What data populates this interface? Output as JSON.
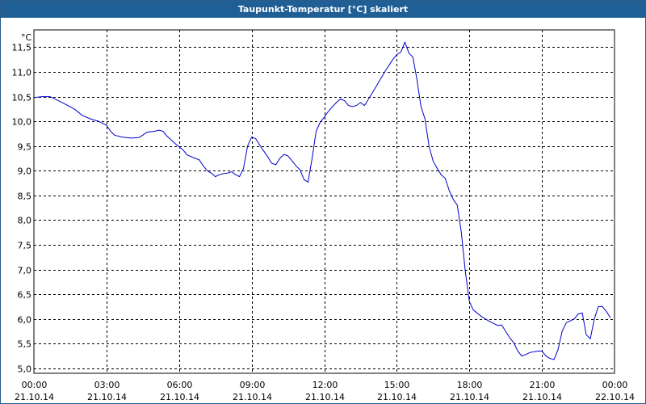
{
  "window": {
    "title": "Taupunkt-Temperatur [°C] skaliert"
  },
  "colors": {
    "title_bar": "#1f5f95",
    "line": "#0000cc",
    "grid": "#000000"
  },
  "chart_data": {
    "type": "line",
    "title": "Taupunkt-Temperatur [°C] skaliert",
    "ylabel": "°C",
    "ylim": [
      4.9,
      11.85
    ],
    "xlim": [
      "2014-10-21 00:00",
      "2014-10-22 00:00"
    ],
    "grid": true,
    "y_ticks": [
      "5,0",
      "5,5",
      "6,0",
      "6,5",
      "7,0",
      "7,5",
      "8,0",
      "8,5",
      "9,0",
      "9,5",
      "10,0",
      "10,5",
      "11,0",
      "11,5"
    ],
    "x_ticks": [
      {
        "time": "00:00",
        "date": "21.10.14"
      },
      {
        "time": "03:00",
        "date": "21.10.14"
      },
      {
        "time": "06:00",
        "date": "21.10.14"
      },
      {
        "time": "09:00",
        "date": "21.10.14"
      },
      {
        "time": "12:00",
        "date": "21.10.14"
      },
      {
        "time": "15:00",
        "date": "21.10.14"
      },
      {
        "time": "18:00",
        "date": "21.10.14"
      },
      {
        "time": "21:00",
        "date": "21.10.14"
      },
      {
        "time": "00:00",
        "date": "22.10.14"
      }
    ],
    "series": [
      {
        "points": [
          [
            "2014-10-21 00:00",
            10.48
          ],
          [
            "2014-10-21 00:20",
            10.5
          ],
          [
            "2014-10-21 00:40",
            10.5
          ],
          [
            "2014-10-21 01:10",
            10.38
          ],
          [
            "2014-10-21 01:40",
            10.25
          ],
          [
            "2014-10-21 02:00",
            10.12
          ],
          [
            "2014-10-21 02:20",
            10.05
          ],
          [
            "2014-10-21 02:40",
            10.0
          ],
          [
            "2014-10-21 03:00",
            9.92
          ],
          [
            "2014-10-21 03:10",
            9.8
          ],
          [
            "2014-10-21 03:20",
            9.72
          ],
          [
            "2014-10-21 03:40",
            9.68
          ],
          [
            "2014-10-21 04:00",
            9.66
          ],
          [
            "2014-10-21 04:20",
            9.67
          ],
          [
            "2014-10-21 04:30",
            9.72
          ],
          [
            "2014-10-21 04:40",
            9.78
          ],
          [
            "2014-10-21 05:00",
            9.8
          ],
          [
            "2014-10-21 05:10",
            9.82
          ],
          [
            "2014-10-21 05:20",
            9.8
          ],
          [
            "2014-10-21 05:30",
            9.7
          ],
          [
            "2014-10-21 05:50",
            9.55
          ],
          [
            "2014-10-21 06:10",
            9.42
          ],
          [
            "2014-10-21 06:20",
            9.32
          ],
          [
            "2014-10-21 06:40",
            9.25
          ],
          [
            "2014-10-21 06:50",
            9.22
          ],
          [
            "2014-10-21 07:00",
            9.1
          ],
          [
            "2014-10-21 07:10",
            9.0
          ],
          [
            "2014-10-21 07:20",
            8.95
          ],
          [
            "2014-10-21 07:30",
            8.88
          ],
          [
            "2014-10-21 07:40",
            8.92
          ],
          [
            "2014-10-21 07:50",
            8.94
          ],
          [
            "2014-10-21 08:00",
            8.95
          ],
          [
            "2014-10-21 08:10",
            8.98
          ],
          [
            "2014-10-21 08:20",
            8.92
          ],
          [
            "2014-10-21 08:30",
            8.88
          ],
          [
            "2014-10-21 08:40",
            9.05
          ],
          [
            "2014-10-21 08:50",
            9.5
          ],
          [
            "2014-10-21 09:00",
            9.68
          ],
          [
            "2014-10-21 09:10",
            9.65
          ],
          [
            "2014-10-21 09:20",
            9.52
          ],
          [
            "2014-10-21 09:40",
            9.28
          ],
          [
            "2014-10-21 09:50",
            9.15
          ],
          [
            "2014-10-21 10:00",
            9.12
          ],
          [
            "2014-10-21 10:10",
            9.25
          ],
          [
            "2014-10-21 10:20",
            9.33
          ],
          [
            "2014-10-21 10:30",
            9.3
          ],
          [
            "2014-10-21 10:40",
            9.2
          ],
          [
            "2014-10-21 10:50",
            9.1
          ],
          [
            "2014-10-21 11:00",
            9.02
          ],
          [
            "2014-10-21 11:10",
            8.82
          ],
          [
            "2014-10-21 11:20",
            8.77
          ],
          [
            "2014-10-21 11:30",
            9.25
          ],
          [
            "2014-10-21 11:40",
            9.8
          ],
          [
            "2014-10-21 11:50",
            9.98
          ],
          [
            "2014-10-21 12:00",
            10.08
          ],
          [
            "2014-10-21 12:10",
            10.2
          ],
          [
            "2014-10-21 12:30",
            10.38
          ],
          [
            "2014-10-21 12:40",
            10.45
          ],
          [
            "2014-10-21 12:50",
            10.42
          ],
          [
            "2014-10-21 13:00",
            10.32
          ],
          [
            "2014-10-21 13:10",
            10.3
          ],
          [
            "2014-10-21 13:20",
            10.32
          ],
          [
            "2014-10-21 13:30",
            10.38
          ],
          [
            "2014-10-21 13:40",
            10.32
          ],
          [
            "2014-10-21 13:50",
            10.45
          ],
          [
            "2014-10-21 14:10",
            10.72
          ],
          [
            "2014-10-21 14:30",
            11.0
          ],
          [
            "2014-10-21 14:50",
            11.25
          ],
          [
            "2014-10-21 15:00",
            11.35
          ],
          [
            "2014-10-21 15:10",
            11.4
          ],
          [
            "2014-10-21 15:20",
            11.6
          ],
          [
            "2014-10-21 15:30",
            11.38
          ],
          [
            "2014-10-21 15:40",
            11.3
          ],
          [
            "2014-10-21 15:50",
            10.85
          ],
          [
            "2014-10-21 16:00",
            10.3
          ],
          [
            "2014-10-21 16:10",
            10.05
          ],
          [
            "2014-10-21 16:20",
            9.5
          ],
          [
            "2014-10-21 16:30",
            9.2
          ],
          [
            "2014-10-21 16:40",
            9.05
          ],
          [
            "2014-10-21 16:50",
            8.92
          ],
          [
            "2014-10-21 17:00",
            8.85
          ],
          [
            "2014-10-21 17:10",
            8.6
          ],
          [
            "2014-10-21 17:20",
            8.42
          ],
          [
            "2014-10-21 17:30",
            8.3
          ],
          [
            "2014-10-21 17:40",
            7.75
          ],
          [
            "2014-10-21 17:50",
            6.95
          ],
          [
            "2014-10-21 18:00",
            6.35
          ],
          [
            "2014-10-21 18:10",
            6.18
          ],
          [
            "2014-10-21 18:30",
            6.05
          ],
          [
            "2014-10-21 18:50",
            5.95
          ],
          [
            "2014-10-21 19:10",
            5.87
          ],
          [
            "2014-10-21 19:20",
            5.88
          ],
          [
            "2014-10-21 19:40",
            5.62
          ],
          [
            "2014-10-21 19:50",
            5.52
          ],
          [
            "2014-10-21 20:00",
            5.35
          ],
          [
            "2014-10-21 20:10",
            5.25
          ],
          [
            "2014-10-21 20:20",
            5.28
          ],
          [
            "2014-10-21 20:30",
            5.32
          ],
          [
            "2014-10-21 20:50",
            5.35
          ],
          [
            "2014-10-21 21:00",
            5.35
          ],
          [
            "2014-10-21 21:10",
            5.25
          ],
          [
            "2014-10-21 21:20",
            5.2
          ],
          [
            "2014-10-21 21:30",
            5.18
          ],
          [
            "2014-10-21 21:40",
            5.38
          ],
          [
            "2014-10-21 21:50",
            5.75
          ],
          [
            "2014-10-21 22:00",
            5.92
          ],
          [
            "2014-10-21 22:20",
            6.0
          ],
          [
            "2014-10-21 22:30",
            6.1
          ],
          [
            "2014-10-21 22:40",
            6.12
          ],
          [
            "2014-10-21 22:50",
            5.68
          ],
          [
            "2014-10-21 23:00",
            5.6
          ],
          [
            "2014-10-21 23:10",
            6.0
          ],
          [
            "2014-10-21 23:20",
            6.25
          ],
          [
            "2014-10-21 23:30",
            6.25
          ],
          [
            "2014-10-21 23:40",
            6.15
          ],
          [
            "2014-10-21 23:50",
            6.02
          ]
        ]
      }
    ]
  }
}
